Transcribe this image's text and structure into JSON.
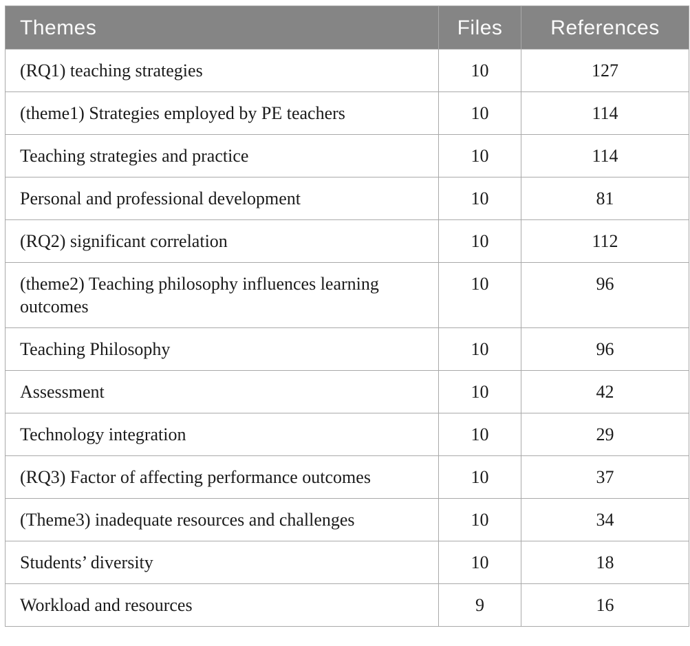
{
  "table": {
    "columns": [
      {
        "key": "theme",
        "label": "Themes",
        "align": "left"
      },
      {
        "key": "files",
        "label": "Files",
        "align": "center"
      },
      {
        "key": "references",
        "label": "References",
        "align": "center"
      }
    ],
    "rows": [
      {
        "theme": "(RQ1) teaching strategies",
        "files": "10",
        "references": "127"
      },
      {
        "theme": "(theme1) Strategies employed by PE teachers",
        "files": "10",
        "references": "114"
      },
      {
        "theme": "Teaching strategies and practice",
        "files": "10",
        "references": "114"
      },
      {
        "theme": "Personal and professional development",
        "files": "10",
        "references": "81"
      },
      {
        "theme": "(RQ2) significant correlation",
        "files": "10",
        "references": "112"
      },
      {
        "theme": "(theme2) Teaching philosophy influences learning outcomes",
        "files": "10",
        "references": "96"
      },
      {
        "theme": "Teaching Philosophy",
        "files": "10",
        "references": "96"
      },
      {
        "theme": "Assessment",
        "files": "10",
        "references": "42"
      },
      {
        "theme": "Technology integration",
        "files": "10",
        "references": "29"
      },
      {
        "theme": "(RQ3) Factor of affecting performance outcomes",
        "files": "10",
        "references": "37"
      },
      {
        "theme": "(Theme3) inadequate resources and challenges",
        "files": "10",
        "references": "34"
      },
      {
        "theme": "Students’ diversity",
        "files": "10",
        "references": "18"
      },
      {
        "theme": "Workload and resources",
        "files": "9",
        "references": "16"
      }
    ]
  },
  "colors": {
    "header_bg": "#858585",
    "header_text": "#fbfbfb",
    "border": "#a9a9a9",
    "body_text": "#1b1b1b",
    "row_bg": "#ffffff",
    "page_bg": "#ffffff"
  }
}
